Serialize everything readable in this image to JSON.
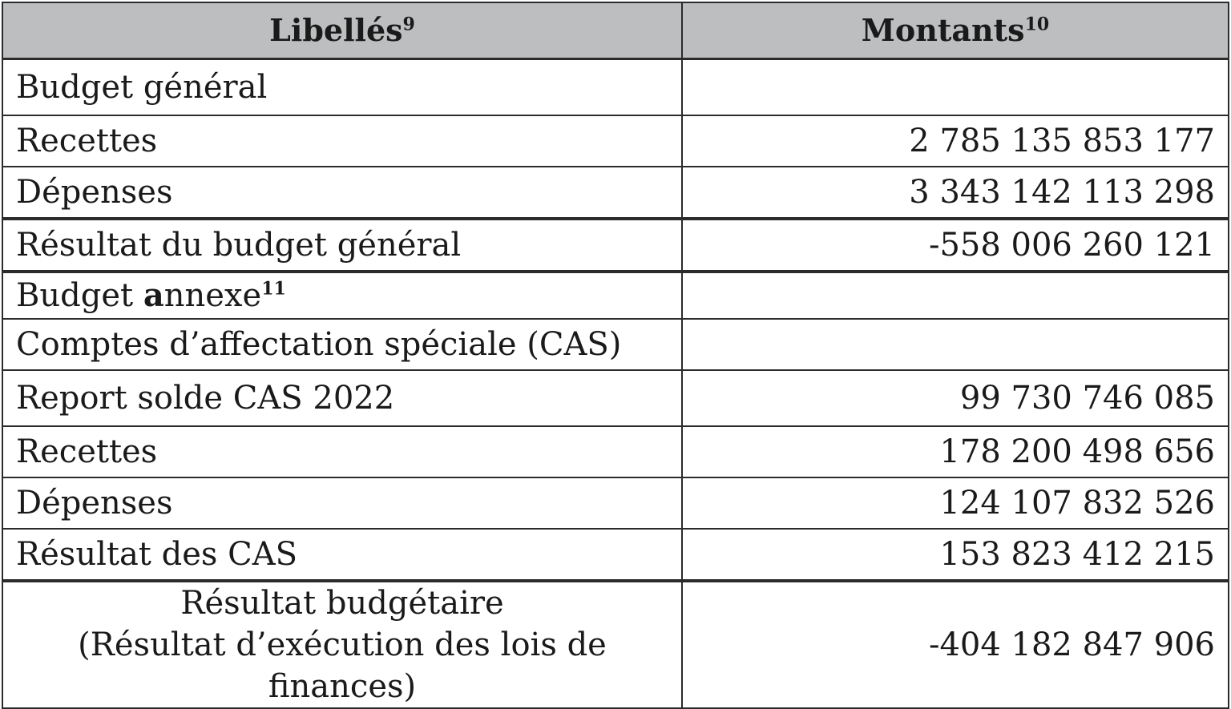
{
  "table": {
    "headers": {
      "col1": "Libellés",
      "col1_note": "9",
      "col2": "Montants",
      "col2_note": "10"
    },
    "rows": [
      {
        "label": "Budget général",
        "amount": ""
      },
      {
        "label": "Recettes",
        "amount": "2 785 135 853 177"
      },
      {
        "label": "Dépenses",
        "amount": "3 343 142 113 298"
      },
      {
        "label": "Résultat du budget général",
        "amount": "-558 006 260 121"
      },
      {
        "label_prefix": "Budget ",
        "label_bold": "a",
        "label_suffix": "nnexe",
        "label_note": "11",
        "amount": ""
      },
      {
        "label": "Comptes d’affectation spéciale (CAS)",
        "amount": ""
      },
      {
        "label": "Report solde CAS 2022",
        "amount": "99 730 746 085"
      },
      {
        "label": "Recettes",
        "amount": "178 200 498 656"
      },
      {
        "label": "Dépenses",
        "amount": "124 107 832 526"
      },
      {
        "label": "Résultat des CAS",
        "amount": "153 823 412 215"
      }
    ],
    "final": {
      "label_line1": "Résultat budgétaire",
      "label_line2": "(Résultat d’exécution des lois de finances)",
      "amount": "-404 182 847 906"
    }
  }
}
